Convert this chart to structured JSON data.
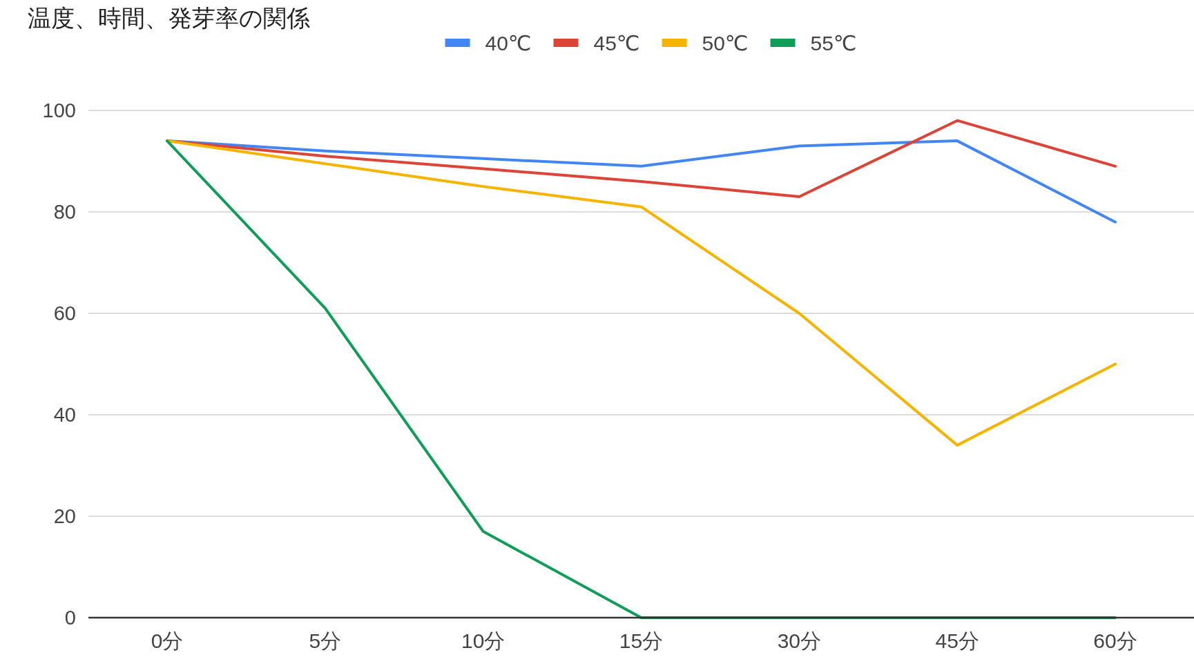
{
  "chart_data": {
    "type": "line",
    "title": "温度、時間、発芽率の関係",
    "categories": [
      "0分",
      "5分",
      "10分",
      "15分",
      "30分",
      "45分",
      "60分"
    ],
    "series": [
      {
        "name": "40℃",
        "color": "#4285f4",
        "values": [
          94,
          92,
          90.5,
          89,
          93,
          94,
          78
        ]
      },
      {
        "name": "45℃",
        "color": "#db4437",
        "values": [
          94,
          91,
          88.5,
          86,
          83,
          98,
          89
        ]
      },
      {
        "name": "50℃",
        "color": "#f4b400",
        "values": [
          94,
          89.5,
          85,
          81,
          60,
          34,
          50
        ]
      },
      {
        "name": "55℃",
        "color": "#0f9d58",
        "values": [
          94,
          61,
          17,
          0,
          0,
          0,
          0
        ]
      }
    ],
    "ylim": [
      0,
      100
    ],
    "yticks": [
      0,
      20,
      40,
      60,
      80,
      100
    ],
    "grid": "y",
    "legend": "top",
    "marker": "none",
    "line_style": "solid"
  }
}
